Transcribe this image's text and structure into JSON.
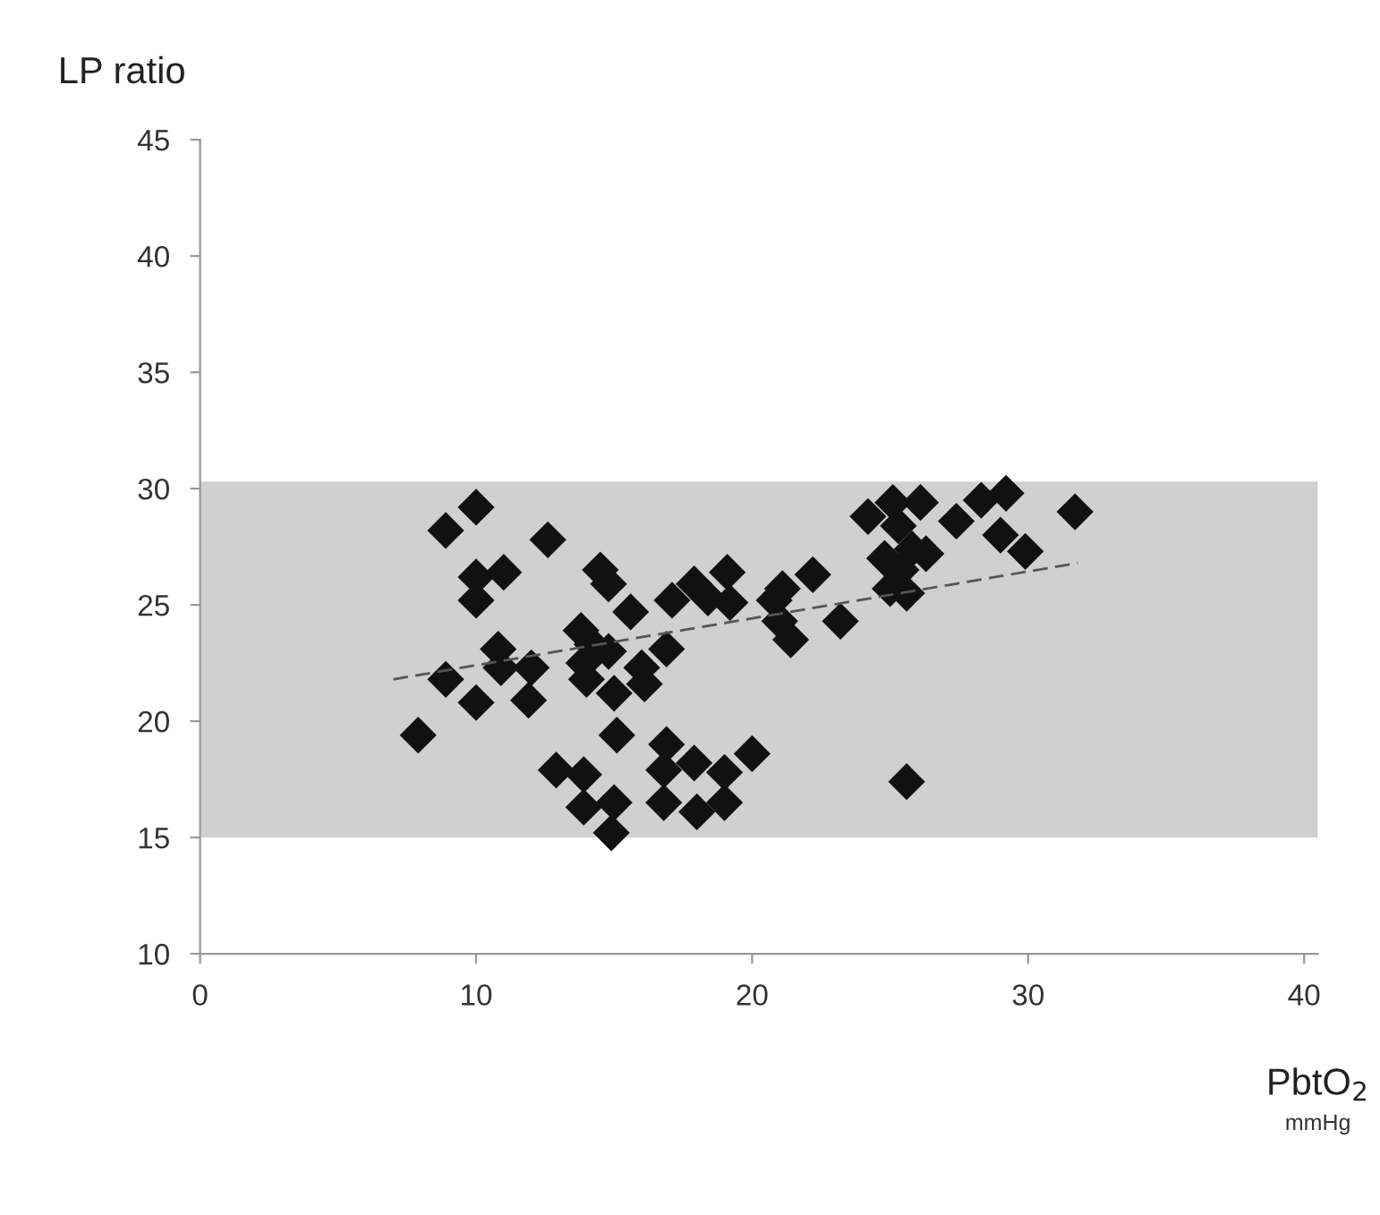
{
  "chart_data": {
    "type": "scatter",
    "ylabel": "LP ratio",
    "xlabel": "PbtO$_{2}$",
    "annotations": [
      "mmHg"
    ],
    "xlim": [
      0,
      40.5
    ],
    "ylim": [
      10,
      45
    ],
    "xticks": [
      0,
      10,
      20,
      30,
      40
    ],
    "yticks": [
      10,
      15,
      20,
      25,
      30,
      35,
      40,
      45
    ],
    "grid": false,
    "marker": "diamond",
    "bands": [
      {
        "axis": "y",
        "from": 15,
        "to": 30.3,
        "color": "#d0d0d0"
      }
    ],
    "series": [
      {
        "color": "#111111",
        "x": [
          10,
          8.9,
          10,
          11,
          10,
          12.6,
          14.5,
          14.8,
          15.6,
          17.1,
          17.9,
          19.1,
          19.2,
          18.4,
          10.8,
          10.9,
          12,
          8.9,
          10,
          11.9,
          7.9,
          13.8,
          14.2,
          13.9,
          14.8,
          14,
          16,
          16.1,
          15,
          16.9,
          15.1,
          12.9,
          13.9,
          13.9,
          15,
          14.9,
          16.9,
          16.8,
          17.9,
          19,
          16.8,
          18,
          19,
          20,
          25.6,
          21.1,
          22.2,
          20.8,
          21,
          21.4,
          23.2,
          24.2,
          25.1,
          26.1,
          25.3,
          24.8,
          25.8,
          26.3,
          25,
          25.6,
          25.4,
          27.4,
          28.3,
          29.2,
          29,
          29.9,
          31.7
        ],
        "values": [
          29.2,
          28.2,
          26.2,
          26.4,
          25.2,
          27.8,
          26.5,
          25.9,
          24.7,
          25.2,
          25.9,
          26.4,
          25.1,
          25.3,
          23.1,
          22.3,
          22.3,
          21.8,
          20.8,
          20.9,
          19.4,
          23.9,
          23.3,
          22.5,
          23,
          21.8,
          22.3,
          21.6,
          21.2,
          23.1,
          19.4,
          17.9,
          17.7,
          16.3,
          16.5,
          15.2,
          19,
          17.9,
          18.2,
          17.8,
          16.5,
          16.1,
          16.5,
          18.6,
          17.4,
          25.7,
          26.3,
          25.2,
          24.3,
          23.5,
          24.3,
          28.8,
          29.4,
          29.4,
          28.4,
          27,
          27.4,
          27.2,
          25.7,
          25.5,
          26.5,
          28.6,
          29.5,
          29.8,
          28,
          27.3,
          29
        ]
      },
      {
        "type": "line",
        "color": "#555555",
        "line_style": "dashed",
        "marker": "none",
        "x": [
          7,
          31.8
        ],
        "values": [
          21.8,
          26.8
        ]
      }
    ]
  }
}
